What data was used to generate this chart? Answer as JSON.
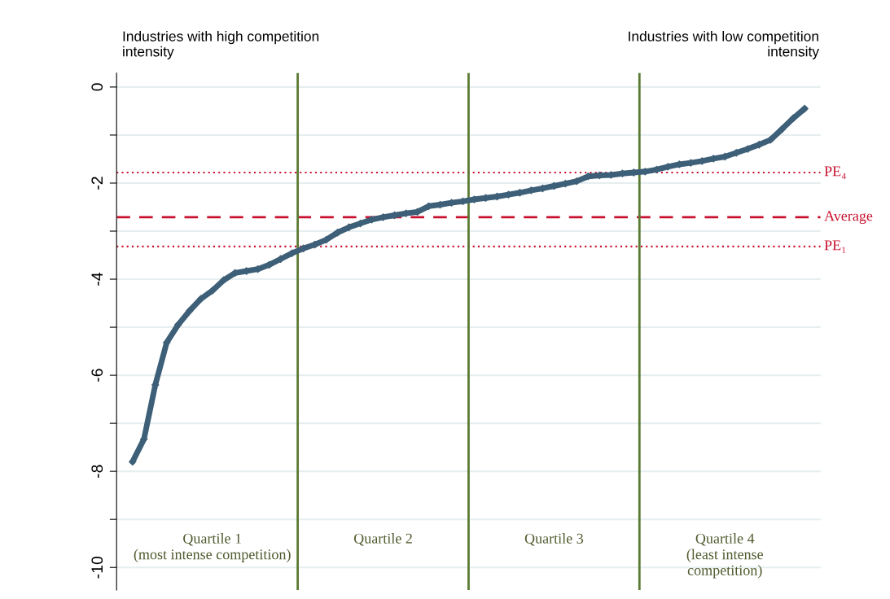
{
  "chart_data": {
    "type": "line",
    "categories": [
      null,
      null,
      null,
      null,
      null,
      null,
      null,
      null,
      null,
      null,
      null,
      null,
      null,
      null,
      null,
      null,
      null,
      null,
      null,
      null,
      null,
      null,
      null,
      null,
      null,
      null,
      null,
      null,
      null,
      null,
      null,
      null,
      null,
      null,
      null,
      null,
      null,
      null,
      null,
      null,
      null,
      null,
      null,
      null,
      null,
      null,
      null,
      null,
      null,
      null,
      null,
      null,
      null,
      null,
      null,
      null,
      null,
      null,
      null,
      null
    ],
    "series": [
      {
        "color": "#3d5f78",
        "values": [
          -7.8,
          -7.33,
          -6.2,
          -5.32,
          -4.95,
          -4.66,
          -4.41,
          -4.24,
          -4.02,
          -3.87,
          -3.83,
          -3.79,
          -3.7,
          -3.58,
          -3.46,
          -3.36,
          -3.28,
          -3.18,
          -3.03,
          -2.92,
          -2.84,
          -2.76,
          -2.71,
          -2.67,
          -2.63,
          -2.6,
          -2.48,
          -2.45,
          -2.41,
          -2.38,
          -2.34,
          -2.31,
          -2.28,
          -2.24,
          -2.2,
          -2.15,
          -2.11,
          -2.06,
          -2.01,
          -1.96,
          -1.86,
          -1.84,
          -1.83,
          -1.8,
          -1.78,
          -1.76,
          -1.72,
          -1.66,
          -1.61,
          -1.58,
          -1.54,
          -1.49,
          -1.45,
          -1.37,
          -1.29,
          -1.2,
          -1.1,
          -0.88,
          -0.65,
          -0.45
        ]
      }
    ],
    "marker": "diamond",
    "ylim": [
      -10.47,
      0.29
    ],
    "yticks": [
      0,
      {
        "value": -1,
        "label": null
      },
      -2,
      {
        "value": -3,
        "label": null
      },
      -4,
      {
        "value": -5,
        "label": null
      },
      -6,
      {
        "value": -7,
        "label": null
      },
      -8,
      {
        "value": -9,
        "label": null
      },
      -10
    ],
    "tick_labels": "y",
    "grid": "y",
    "ref_lines": [
      {
        "axis": "y",
        "value": -1.78,
        "label": "PE₄",
        "color": "#c8102e",
        "line_style": "dotted"
      },
      {
        "axis": "y",
        "value": -2.71,
        "label": "Average",
        "color": "#c8102e",
        "line_style": "dashed"
      },
      {
        "axis": "y",
        "value": -3.32,
        "label": "PE₁",
        "color": "#c8102e",
        "line_style": "dotted"
      }
    ],
    "annotations": [
      "Industries with high competition\nintensity",
      "Industries with low competition\nintensity",
      "Quartile 1\n(most intense competition)",
      "Quartile 2",
      "Quartile 3",
      "Quartile 4\n(least intense\ncompetition)"
    ]
  }
}
